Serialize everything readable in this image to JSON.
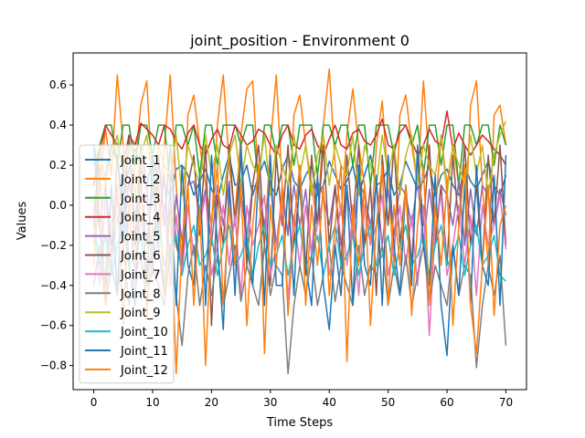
{
  "chart_data": {
    "type": "line",
    "title": "joint_position - Environment 0",
    "xlabel": "Time Steps",
    "ylabel": "Values",
    "xlim": [
      -3.5,
      73.5
    ],
    "ylim": [
      -0.92,
      0.76
    ],
    "xticks": [
      0,
      10,
      20,
      30,
      40,
      50,
      60,
      70
    ],
    "yticks": [
      -0.8,
      -0.6,
      -0.4,
      -0.2,
      0.0,
      0.2,
      0.4,
      0.6
    ],
    "ytick_labels": [
      "−0.8",
      "−0.6",
      "−0.4",
      "−0.2",
      "0.0",
      "0.2",
      "0.4",
      "0.6"
    ],
    "grid": false,
    "legend_position": "upper-left",
    "colors": [
      "#1f77b4",
      "#ff7f0e",
      "#2ca02c",
      "#d62728",
      "#9467bd",
      "#8c564b",
      "#e377c2",
      "#7f7f7f",
      "#bcbd22",
      "#17becf",
      "#1f77b4",
      "#ff7f0e"
    ],
    "series": [
      {
        "name": "Joint_1",
        "values": [
          0.3,
          0.12,
          0.15,
          0.3,
          0.22,
          0.05,
          0.18,
          0.28,
          0.2,
          0.08,
          0.25,
          0.12,
          0.1,
          0.05,
          0.18,
          0.2,
          0.15,
          0.05,
          0.12,
          0.18,
          0.08,
          0.02,
          0.15,
          0.25,
          0.1,
          0.12,
          0.2,
          0.05,
          0.15,
          0.22,
          0.1,
          0.05,
          0.18,
          0.25,
          0.12,
          0.08,
          0.15,
          0.2,
          0.05,
          0.1,
          0.22,
          0.15,
          0.08,
          0.12,
          0.2,
          0.05,
          0.15,
          0.25,
          0.1,
          0.12,
          0.18,
          0.05,
          0.1,
          0.22,
          0.15,
          0.08,
          0.12,
          0.2,
          0.05,
          0.15,
          0.18,
          0.1,
          0.05,
          0.2,
          0.12,
          0.08,
          0.15,
          0.22,
          0.1,
          0.05,
          0.15
        ]
      },
      {
        "name": "Joint_2",
        "values": [
          -0.3,
          0.1,
          0.38,
          0.15,
          0.65,
          0.3,
          -0.05,
          0.2,
          0.5,
          0.62,
          0.1,
          -0.2,
          0.3,
          0.65,
          0.1,
          -0.3,
          0.45,
          0.55,
          0.3,
          0.1,
          -0.1,
          0.4,
          0.65,
          0.2,
          -0.05,
          0.35,
          0.58,
          0.62,
          0.1,
          -0.2,
          0.3,
          0.65,
          0.1,
          -0.15,
          0.45,
          0.55,
          0.3,
          0.1,
          -0.1,
          0.4,
          0.68,
          0.2,
          -0.05,
          0.35,
          0.58,
          0.3,
          0.1,
          -0.2,
          0.3,
          0.52,
          0.1,
          -0.3,
          0.45,
          0.55,
          0.3,
          0.1,
          0.62,
          0.2,
          -0.05,
          0.35,
          0.1,
          0.3,
          0.1,
          -0.2,
          0.5,
          0.62,
          0.1,
          -0.3,
          0.45,
          0.5,
          0.3
        ]
      },
      {
        "name": "Joint_3",
        "values": [
          0.1,
          0.3,
          0.4,
          0.4,
          0.2,
          0.4,
          0.4,
          0.2,
          0.4,
          0.4,
          0.25,
          0.4,
          0.4,
          0.1,
          0.4,
          0.4,
          0.3,
          0.4,
          0.15,
          0.4,
          0.4,
          0.2,
          0.4,
          0.4,
          0.4,
          0.3,
          0.4,
          0.4,
          0.1,
          0.4,
          0.4,
          0.25,
          0.4,
          0.4,
          0.2,
          0.4,
          0.4,
          0.4,
          0.15,
          0.4,
          0.4,
          0.3,
          0.4,
          0.4,
          0.2,
          0.4,
          0.4,
          0.1,
          0.4,
          0.4,
          0.4,
          0.25,
          0.4,
          0.4,
          0.3,
          0.4,
          0.15,
          0.4,
          0.4,
          0.2,
          0.4,
          0.4,
          0.1,
          0.4,
          0.4,
          0.3,
          0.4,
          0.4,
          0.2,
          0.4,
          0.3
        ]
      },
      {
        "name": "Joint_4",
        "values": [
          0.1,
          0.25,
          0.4,
          0.35,
          0.3,
          0.2,
          0.35,
          0.3,
          0.41,
          0.38,
          0.35,
          0.3,
          0.4,
          0.38,
          0.32,
          0.28,
          0.36,
          0.4,
          0.3,
          0.25,
          0.33,
          0.38,
          0.3,
          0.28,
          0.4,
          0.35,
          0.3,
          0.32,
          0.38,
          0.36,
          0.3,
          0.25,
          0.35,
          0.4,
          0.3,
          0.28,
          0.35,
          0.38,
          0.3,
          0.25,
          0.33,
          0.4,
          0.3,
          0.28,
          0.36,
          0.38,
          0.32,
          0.3,
          0.35,
          0.43,
          0.3,
          0.28,
          0.36,
          0.4,
          0.32,
          0.25,
          0.3,
          0.38,
          0.32,
          0.3,
          0.47,
          0.28,
          0.36,
          0.3,
          0.25,
          0.3,
          0.35,
          0.32,
          0.28,
          0.25,
          0.2
        ]
      },
      {
        "name": "Joint_5",
        "values": [
          0.05,
          -0.1,
          0.1,
          -0.2,
          0.05,
          -0.15,
          0.12,
          -0.05,
          0.1,
          -0.2,
          0.08,
          -0.1,
          0.15,
          -0.3,
          0.05,
          -0.18,
          0.1,
          0.12,
          -0.05,
          0.08,
          -0.2,
          0.1,
          -0.1,
          0.12,
          -0.3,
          0.05,
          -0.15,
          0.1,
          0.08,
          -0.1,
          0.12,
          -0.2,
          0.05,
          -0.15,
          0.1,
          -0.1,
          0.08,
          -0.25,
          0.12,
          0.05,
          -0.1,
          0.1,
          -0.2,
          0.08,
          -0.15,
          0.12,
          0.05,
          -0.1,
          0.1,
          -0.2,
          0.08,
          -0.15,
          0.1,
          0.05,
          -0.1,
          0.12,
          -0.2,
          0.08,
          -0.15,
          0.1,
          0.05,
          -0.1,
          0.12,
          -0.2,
          0.08,
          -0.15,
          0.1,
          0.05,
          -0.1,
          0.08,
          -0.05
        ]
      },
      {
        "name": "Joint_6",
        "values": [
          -0.1,
          0.3,
          0.1,
          -0.3,
          0.25,
          -0.1,
          0.35,
          -0.2,
          0.3,
          0.1,
          -0.35,
          0.25,
          -0.1,
          0.3,
          -0.2,
          -0.3,
          0.1,
          0.25,
          -0.15,
          0.3,
          -0.6,
          0.05,
          -0.2,
          0.3,
          -0.1,
          0.25,
          -0.3,
          0.1,
          0.3,
          -0.2,
          -0.4,
          0.25,
          -0.1,
          0.3,
          -0.2,
          0.1,
          -0.35,
          0.25,
          -0.1,
          0.3,
          -0.2,
          0.1,
          -0.3,
          0.25,
          -0.1,
          0.3,
          -0.2,
          0.1,
          -0.45,
          0.25,
          -0.1,
          0.3,
          -0.2,
          0.1,
          -0.3,
          0.25,
          -0.1,
          0.3,
          -0.2,
          0.1,
          -0.3,
          0.25,
          -0.1,
          0.3,
          -0.2,
          0.1,
          -0.3,
          0.25,
          -0.1,
          0.3,
          -0.2
        ]
      },
      {
        "name": "Joint_7",
        "values": [
          0.0,
          -0.4,
          0.05,
          -0.3,
          -0.05,
          -0.2,
          0.0,
          -0.35,
          -0.1,
          0.05,
          -0.3,
          -0.15,
          0.0,
          -0.4,
          -0.05,
          -0.35,
          0.0,
          -0.25,
          -0.1,
          0.05,
          -0.35,
          -0.2,
          0.0,
          -0.3,
          -0.05,
          -0.45,
          0.0,
          -0.2,
          -0.1,
          0.05,
          -0.35,
          -0.2,
          0.0,
          -0.47,
          -0.05,
          -0.3,
          0.0,
          -0.25,
          -0.1,
          0.05,
          -0.35,
          -0.2,
          0.0,
          -0.3,
          -0.05,
          -0.45,
          0.0,
          -0.2,
          -0.1,
          0.05,
          -0.35,
          -0.2,
          0.0,
          -0.3,
          -0.05,
          -0.4,
          0.0,
          -0.65,
          -0.1,
          0.05,
          -0.35,
          -0.2,
          0.0,
          -0.3,
          -0.05,
          -0.45,
          0.0,
          -0.2,
          -0.1,
          0.05,
          -0.22
        ]
      },
      {
        "name": "Joint_8",
        "values": [
          -0.4,
          -0.2,
          -0.5,
          -0.3,
          -0.45,
          -0.2,
          -0.5,
          -0.35,
          -0.25,
          -0.48,
          -0.3,
          -0.4,
          -0.5,
          -0.2,
          -0.45,
          -0.7,
          -0.35,
          -0.2,
          -0.5,
          -0.3,
          -0.45,
          -0.25,
          -0.5,
          -0.35,
          -0.2,
          -0.48,
          -0.3,
          -0.4,
          -0.5,
          -0.2,
          -0.45,
          -0.3,
          -0.35,
          -0.84,
          -0.5,
          -0.3,
          -0.45,
          -0.25,
          -0.5,
          -0.35,
          -0.2,
          -0.48,
          -0.3,
          -0.4,
          -0.5,
          -0.2,
          -0.45,
          -0.3,
          -0.35,
          -0.2,
          -0.5,
          -0.3,
          -0.45,
          -0.25,
          -0.5,
          -0.35,
          -0.2,
          -0.48,
          -0.3,
          -0.4,
          -0.5,
          -0.2,
          -0.45,
          -0.3,
          -0.35,
          -0.81,
          -0.5,
          -0.3,
          -0.45,
          -0.25,
          -0.7
        ]
      },
      {
        "name": "Joint_9",
        "values": [
          0.2,
          0.3,
          0.1,
          0.25,
          0.35,
          0.15,
          0.3,
          0.05,
          0.25,
          0.35,
          0.1,
          0.3,
          0.2,
          0.15,
          0.35,
          0.05,
          0.3,
          0.2,
          0.1,
          0.35,
          0.15,
          0.3,
          0.05,
          0.25,
          0.35,
          0.1,
          0.3,
          0.2,
          0.15,
          0.35,
          0.05,
          0.3,
          0.2,
          0.1,
          0.35,
          0.15,
          0.3,
          0.05,
          0.25,
          0.35,
          0.1,
          0.3,
          0.2,
          0.15,
          0.35,
          0.05,
          0.3,
          0.2,
          0.1,
          0.35,
          0.15,
          0.3,
          0.05,
          0.25,
          0.35,
          0.1,
          0.3,
          0.2,
          0.15,
          0.35,
          0.05,
          0.3,
          0.2,
          0.1,
          0.35,
          0.15,
          0.3,
          0.05,
          0.25,
          0.35,
          0.42
        ]
      },
      {
        "name": "Joint_10",
        "values": [
          -0.1,
          -0.3,
          -0.15,
          -0.35,
          -0.2,
          -0.1,
          -0.3,
          -0.25,
          -0.15,
          -0.35,
          -0.2,
          -0.1,
          -0.3,
          -0.25,
          -0.15,
          -0.35,
          -0.2,
          -0.1,
          -0.3,
          -0.25,
          -0.15,
          -0.35,
          -0.2,
          -0.1,
          -0.3,
          -0.25,
          -0.15,
          -0.35,
          -0.2,
          -0.1,
          -0.3,
          -0.25,
          -0.15,
          -0.35,
          -0.2,
          -0.1,
          -0.3,
          -0.25,
          -0.15,
          -0.35,
          -0.2,
          -0.1,
          -0.3,
          -0.25,
          -0.15,
          -0.35,
          -0.2,
          -0.1,
          -0.3,
          -0.25,
          -0.15,
          -0.35,
          -0.2,
          -0.1,
          -0.3,
          -0.25,
          -0.15,
          -0.35,
          -0.2,
          -0.1,
          -0.3,
          -0.25,
          -0.15,
          -0.35,
          -0.2,
          -0.1,
          -0.3,
          -0.25,
          -0.15,
          -0.35,
          -0.38
        ]
      },
      {
        "name": "Joint_11",
        "values": [
          0.3,
          -0.1,
          -0.4,
          0.1,
          -0.45,
          0.2,
          -0.3,
          -0.5,
          0.15,
          -0.4,
          0.25,
          -0.2,
          -0.45,
          0.1,
          -0.5,
          0.2,
          -0.3,
          -0.4,
          0.15,
          -0.5,
          0.25,
          -0.2,
          -0.62,
          0.1,
          -0.45,
          0.3,
          -0.2,
          -0.4,
          0.15,
          -0.5,
          0.25,
          -0.4,
          -0.4,
          0.1,
          -0.45,
          0.2,
          -0.3,
          -0.5,
          0.15,
          -0.4,
          -0.62,
          -0.2,
          -0.45,
          0.1,
          -0.5,
          0.2,
          -0.3,
          -0.4,
          0.15,
          -0.5,
          0.25,
          -0.2,
          -0.45,
          0.1,
          -0.4,
          0.3,
          -0.2,
          -0.4,
          0.15,
          -0.5,
          -0.75,
          -0.2,
          -0.45,
          0.1,
          -0.5,
          0.2,
          -0.3,
          -0.4,
          0.15,
          -0.5,
          0.25
        ]
      },
      {
        "name": "Joint_12",
        "values": [
          -0.2,
          0.2,
          -0.5,
          -0.1,
          0.1,
          -0.6,
          0.0,
          -0.3,
          0.2,
          -0.55,
          -0.1,
          0.1,
          -0.45,
          0.0,
          -0.84,
          -0.2,
          0.1,
          -0.5,
          0.0,
          -0.8,
          -0.1,
          0.2,
          -0.5,
          0.0,
          -0.3,
          0.1,
          -0.6,
          -0.1,
          0.2,
          -0.74,
          0.0,
          -0.3,
          0.1,
          -0.55,
          -0.1,
          0.2,
          -0.5,
          0.0,
          -0.3,
          0.1,
          -0.45,
          -0.1,
          0.2,
          -0.78,
          0.0,
          -0.3,
          0.1,
          -0.6,
          -0.1,
          0.2,
          -0.5,
          0.0,
          -0.3,
          0.1,
          -0.55,
          -0.1,
          0.2,
          -0.5,
          0.0,
          -0.3,
          0.1,
          -0.6,
          -0.1,
          0.2,
          -0.5,
          -0.74,
          -0.3,
          0.1,
          -0.55,
          -0.1,
          0.0
        ]
      }
    ]
  }
}
